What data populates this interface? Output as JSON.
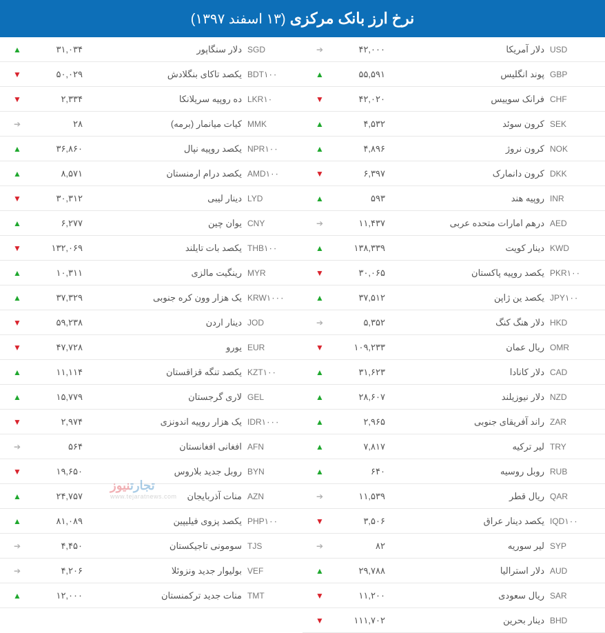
{
  "header": {
    "title": "نرخ ارز بانک مرکزی",
    "date": "(۱۳ اسفند ۱۳۹۷)"
  },
  "colors": {
    "header_bg": "#0d6fb8",
    "header_text": "#ffffff",
    "up": "#1fa82e",
    "down": "#d9232d",
    "neutral": "#b0b0b0",
    "text": "#555555",
    "border": "#e8e8e8",
    "bg": "#ffffff"
  },
  "watermark": {
    "brand_fa": "تجارت",
    "brand_fa2": "نیوز",
    "url": "www.tejaratnews.com"
  },
  "arrows": {
    "up": "▲",
    "down": "▼",
    "neutral": "➔"
  },
  "right_col": [
    {
      "code": "USD",
      "name": "دلار آمریکا",
      "value": "۴۲,۰۰۰",
      "trend": "neutral"
    },
    {
      "code": "GBP",
      "name": "پوند انگلیس",
      "value": "۵۵,۵۹۱",
      "trend": "up"
    },
    {
      "code": "CHF",
      "name": "فرانک سوییس",
      "value": "۴۲,۰۲۰",
      "trend": "down"
    },
    {
      "code": "SEK",
      "name": "کرون سوئد",
      "value": "۴,۵۳۲",
      "trend": "up"
    },
    {
      "code": "NOK",
      "name": "کرون نروژ",
      "value": "۴,۸۹۶",
      "trend": "up"
    },
    {
      "code": "DKK",
      "name": "کرون دانمارک",
      "value": "۶,۳۹۷",
      "trend": "down"
    },
    {
      "code": "INR",
      "name": "روپیه هند",
      "value": "۵۹۳",
      "trend": "up"
    },
    {
      "code": "AED",
      "name": "درهم امارات متحده عربی",
      "value": "۱۱,۴۳۷",
      "trend": "neutral"
    },
    {
      "code": "KWD",
      "name": "دینار کویت",
      "value": "۱۳۸,۳۳۹",
      "trend": "up"
    },
    {
      "code": "PKR۱۰۰",
      "name": "یکصد روپیه پاکستان",
      "value": "۳۰,۰۶۵",
      "trend": "down"
    },
    {
      "code": "JPY۱۰۰",
      "name": "یکصد ین ژاپن",
      "value": "۳۷,۵۱۲",
      "trend": "up"
    },
    {
      "code": "HKD",
      "name": "دلار هنگ کنگ",
      "value": "۵,۳۵۲",
      "trend": "neutral"
    },
    {
      "code": "OMR",
      "name": "ریال عمان",
      "value": "۱۰۹,۲۳۳",
      "trend": "down"
    },
    {
      "code": "CAD",
      "name": "دلار کانادا",
      "value": "۳۱,۶۲۳",
      "trend": "up"
    },
    {
      "code": "NZD",
      "name": "دلار نیوزیلند",
      "value": "۲۸,۶۰۷",
      "trend": "up"
    },
    {
      "code": "ZAR",
      "name": "راند آفریقای جنوبی",
      "value": "۲,۹۶۵",
      "trend": "up"
    },
    {
      "code": "TRY",
      "name": "لیر ترکیه",
      "value": "۷,۸۱۷",
      "trend": "up"
    },
    {
      "code": "RUB",
      "name": "روبل روسیه",
      "value": "۶۴۰",
      "trend": "up"
    },
    {
      "code": "QAR",
      "name": "ریال قطر",
      "value": "۱۱,۵۳۹",
      "trend": "neutral"
    },
    {
      "code": "IQD۱۰۰",
      "name": "یکصد دینار عراق",
      "value": "۳,۵۰۶",
      "trend": "down"
    },
    {
      "code": "SYP",
      "name": "لیر سوریه",
      "value": "۸۲",
      "trend": "neutral"
    },
    {
      "code": "AUD",
      "name": "دلار استرالیا",
      "value": "۲۹,۷۸۸",
      "trend": "up"
    },
    {
      "code": "SAR",
      "name": "ریال سعودی",
      "value": "۱۱,۲۰۰",
      "trend": "down"
    },
    {
      "code": "BHD",
      "name": "دینار بحرین",
      "value": "۱۱۱,۷۰۲",
      "trend": "down"
    }
  ],
  "left_col": [
    {
      "code": "SGD",
      "name": "دلار سنگاپور",
      "value": "۳۱,۰۳۴",
      "trend": "up"
    },
    {
      "code": "BDT۱۰۰",
      "name": "یکصد تاکای بنگلادش",
      "value": "۵۰,۰۲۹",
      "trend": "down"
    },
    {
      "code": "LKR۱۰",
      "name": "ده روپیه سریلانکا",
      "value": "۲,۳۳۴",
      "trend": "down"
    },
    {
      "code": "MMK",
      "name": "کیات میانمار (برمه)",
      "value": "۲۸",
      "trend": "neutral"
    },
    {
      "code": "NPR۱۰۰",
      "name": "یکصد روپیه نپال",
      "value": "۳۶,۸۶۰",
      "trend": "up"
    },
    {
      "code": "AMD۱۰۰",
      "name": "یکصد درام ارمنستان",
      "value": "۸,۵۷۱",
      "trend": "up"
    },
    {
      "code": "LYD",
      "name": "دینار لیبی",
      "value": "۳۰,۳۱۲",
      "trend": "down"
    },
    {
      "code": "CNY",
      "name": "یوان چین",
      "value": "۶,۲۷۷",
      "trend": "up"
    },
    {
      "code": "THB۱۰۰",
      "name": "یکصد بات تایلند",
      "value": "۱۳۲,۰۶۹",
      "trend": "down"
    },
    {
      "code": "MYR",
      "name": "رینگیت مالزی",
      "value": "۱۰,۳۱۱",
      "trend": "up"
    },
    {
      "code": "KRW۱۰۰۰",
      "name": "یک هزار وون کره جنوبی",
      "value": "۳۷,۳۲۹",
      "trend": "up"
    },
    {
      "code": "JOD",
      "name": "دینار اردن",
      "value": "۵۹,۲۳۸",
      "trend": "down"
    },
    {
      "code": "EUR",
      "name": "یورو",
      "value": "۴۷,۷۲۸",
      "trend": "down"
    },
    {
      "code": "KZT۱۰۰",
      "name": "یکصد تنگه قزاقستان",
      "value": "۱۱,۱۱۴",
      "trend": "up"
    },
    {
      "code": "GEL",
      "name": "لاری گرجستان",
      "value": "۱۵,۷۷۹",
      "trend": "up"
    },
    {
      "code": "IDR۱۰۰۰",
      "name": "یک هزار روپیه اندونزی",
      "value": "۲,۹۷۴",
      "trend": "down"
    },
    {
      "code": "AFN",
      "name": "افغانی افغانستان",
      "value": "۵۶۴",
      "trend": "neutral"
    },
    {
      "code": "BYN",
      "name": "روبل جدید بلاروس",
      "value": "۱۹,۶۵۰",
      "trend": "down"
    },
    {
      "code": "AZN",
      "name": "منات آذربایجان",
      "value": "۲۴,۷۵۷",
      "trend": "up"
    },
    {
      "code": "PHP۱۰۰",
      "name": "یکصد پزوی فیلیپین",
      "value": "۸۱,۰۸۹",
      "trend": "up"
    },
    {
      "code": "TJS",
      "name": "سومونی تاجیکستان",
      "value": "۴,۴۵۰",
      "trend": "neutral"
    },
    {
      "code": "VEF",
      "name": "بولیوار جدید ونزوئلا",
      "value": "۴,۲۰۶",
      "trend": "neutral"
    },
    {
      "code": "TMT",
      "name": "منات جدید ترکمنستان",
      "value": "۱۲,۰۰۰",
      "trend": "up"
    }
  ]
}
